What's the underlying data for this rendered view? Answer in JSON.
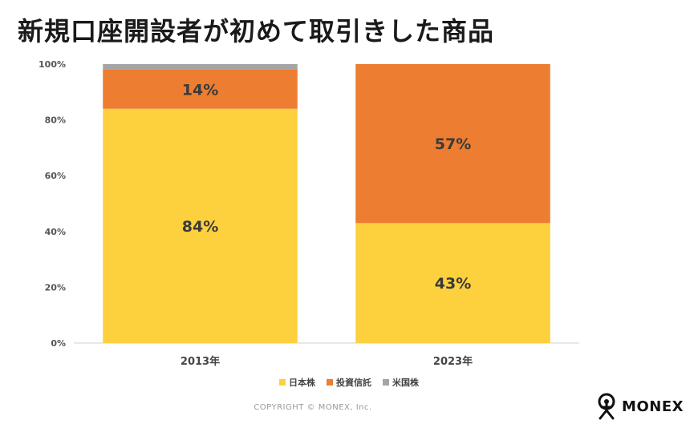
{
  "title": "新規口座開設者が初めて取引きした商品",
  "colors": {
    "japan": "#FDD03E",
    "fund": "#ED7D31",
    "us": "#A5A5A5"
  },
  "chart_data": {
    "type": "bar",
    "stacked": true,
    "categories": [
      "2013年",
      "2023年"
    ],
    "series": [
      {
        "name": "日本株",
        "values": [
          84,
          43
        ],
        "labels": [
          "84%",
          "43%"
        ],
        "color": "#FDD03E"
      },
      {
        "name": "投資信託",
        "values": [
          14,
          57
        ],
        "labels": [
          "14%",
          "57%"
        ],
        "color": "#ED7D31"
      },
      {
        "name": "米国株",
        "values": [
          2,
          0
        ],
        "labels": [
          "",
          ""
        ],
        "color": "#A5A5A5"
      }
    ],
    "ylim": [
      0,
      100
    ],
    "yticks": [
      "0%",
      "20%",
      "40%",
      "60%",
      "80%",
      "100%"
    ],
    "legend_position": "bottom"
  },
  "legend": [
    "日本株",
    "投資信託",
    "米国株"
  ],
  "copyright": "COPYRIGHT © MONEX, Inc.",
  "brand": "MONEX"
}
